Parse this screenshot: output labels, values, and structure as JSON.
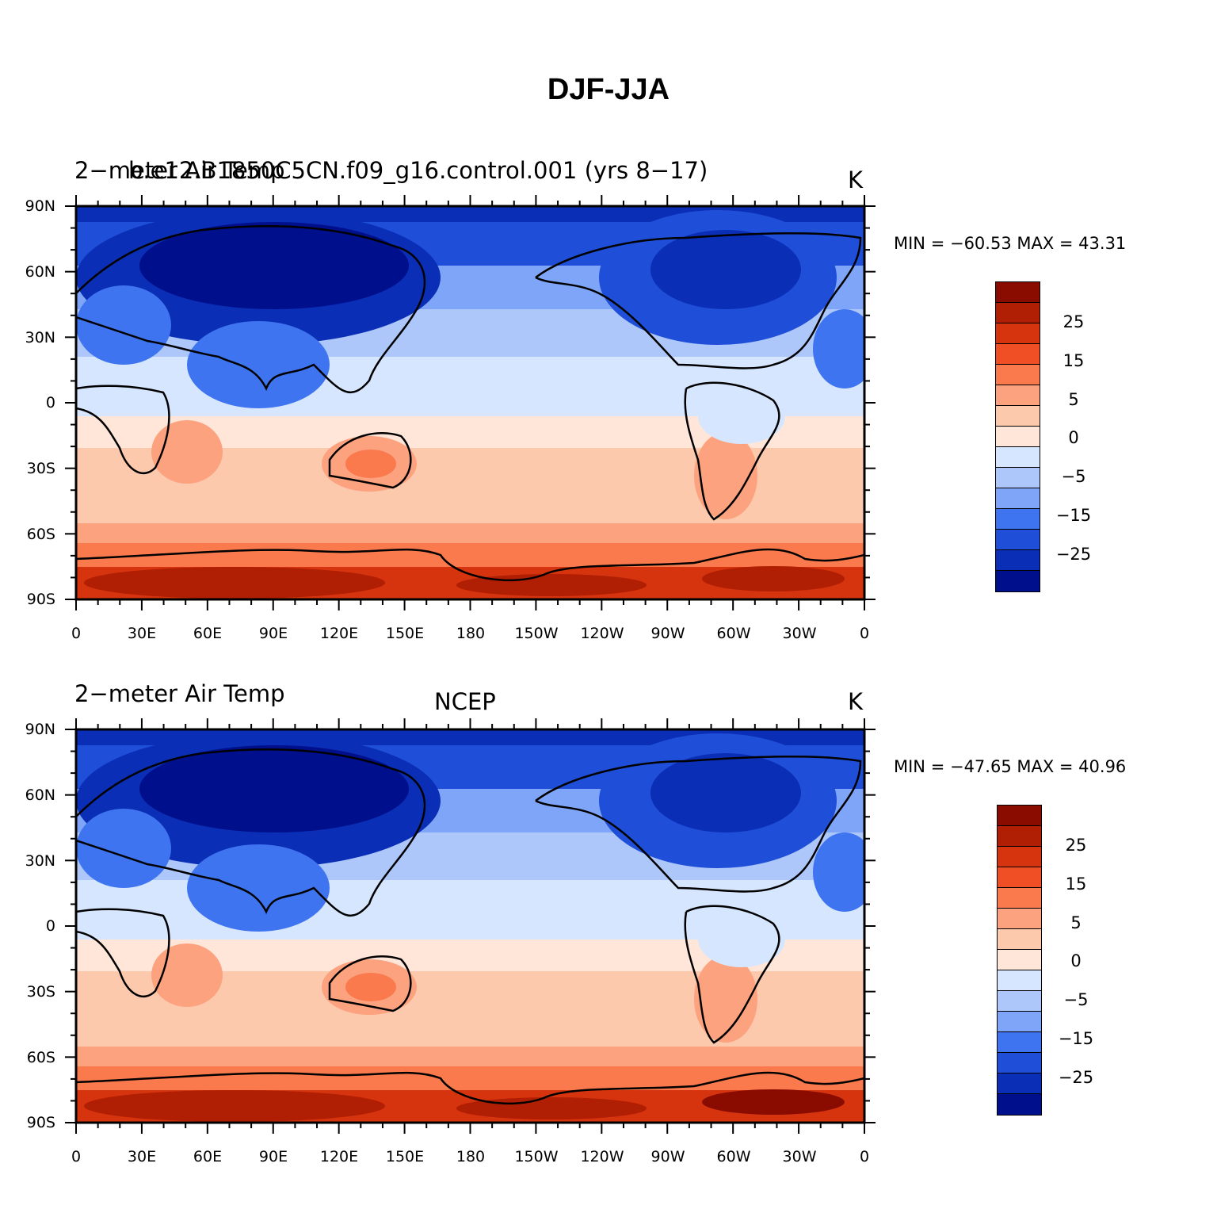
{
  "title": "DJF-JJA",
  "colors": {
    "levels": [
      "#000f8c",
      "#0a2eb5",
      "#1f4fd8",
      "#3f74f0",
      "#7ea5f7",
      "#adc7fa",
      "#d6e6fe",
      "#ffe6d8",
      "#fdc9ad",
      "#fca27f",
      "#fa7a4e",
      "#f04f25",
      "#d6340e",
      "#b01e04",
      "#8a0c00"
    ],
    "coast": "#000000"
  },
  "colorbar_labels": [
    "25",
    "15",
    "5",
    "0",
    "−5",
    "−15",
    "−25"
  ],
  "lat_ticks": [
    "90N",
    "60N",
    "30N",
    "0",
    "30S",
    "60S",
    "90S"
  ],
  "lon_ticks": [
    "0",
    "30E",
    "60E",
    "90E",
    "120E",
    "150E",
    "180",
    "150W",
    "120W",
    "90W",
    "60W",
    "30W",
    "0"
  ],
  "panels": [
    {
      "left_title": "2−meter Air Temp",
      "center_title": "b.e12.B1850C5CN.f09_g16.control.001 (yrs 8−17)",
      "units": "K",
      "min_max": "MIN = −60.53 MAX =   43.31",
      "min": -60.53,
      "max": 43.31
    },
    {
      "left_title": "2−meter Air Temp",
      "center_title": "NCEP",
      "units": "K",
      "min_max": "MIN = −47.65 MAX =   40.96",
      "min": -47.65,
      "max": 40.96
    }
  ]
}
